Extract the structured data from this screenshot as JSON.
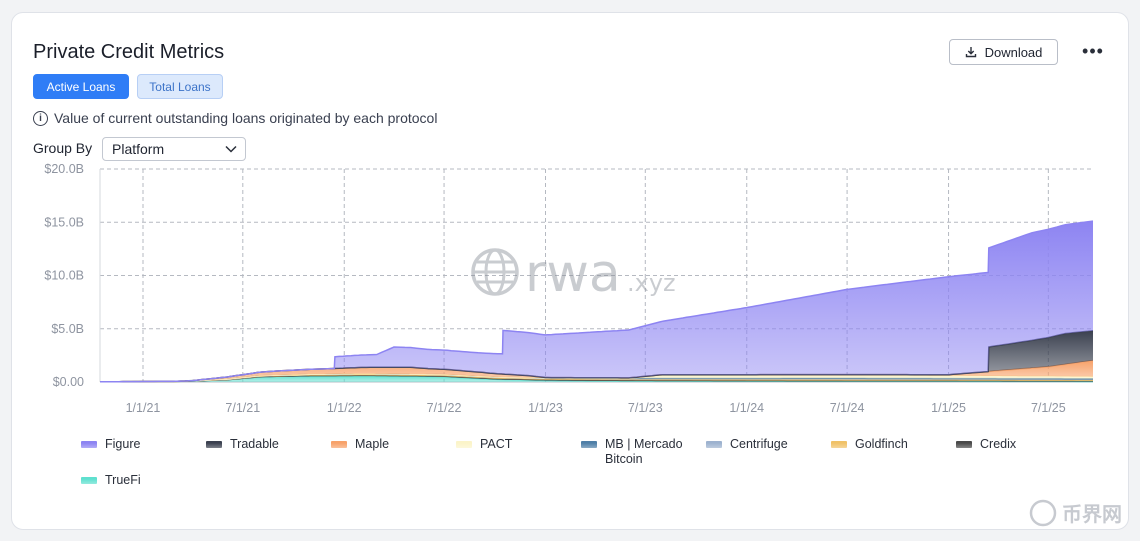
{
  "header": {
    "title": "Private Credit Metrics",
    "download_label": "Download",
    "more_glyph": "•••"
  },
  "tabs": [
    {
      "label": "Active Loans",
      "active": true
    },
    {
      "label": "Total Loans",
      "active": false
    }
  ],
  "info_text": "Value of current outstanding loans originated by each protocol",
  "group_by": {
    "label": "Group By",
    "value": "Platform"
  },
  "watermark": {
    "main": "rwa",
    "suffix": ".xyz"
  },
  "corner_watermark": "币界网",
  "colors": {
    "figure": "#8d84f2",
    "tradable": "#3b4150",
    "maple": "#f7a26a",
    "pact": "#fbf4c9",
    "mb_mercado": "#4f7fa7",
    "centrifuge": "#9db2cf",
    "goldfinch": "#f0c268",
    "credix": "#4a4a4a",
    "truefi": "#5fe0cf"
  },
  "chart_data": {
    "type": "area",
    "stacked": true,
    "y_tick_labels": [
      "$0.00",
      "$5.0B",
      "$10.0B",
      "$15.0B",
      "$20.0B"
    ],
    "y_ticks": [
      0,
      5,
      10,
      15,
      20
    ],
    "ylim": [
      0,
      20
    ],
    "y_unit": "USD billions",
    "x_tick_labels": [
      "1/1/21",
      "7/1/21",
      "1/1/22",
      "7/1/22",
      "1/1/23",
      "7/1/23",
      "1/1/24",
      "7/1/24",
      "1/1/25",
      "7/1/25"
    ],
    "x_ticks": [
      "2021-01-01",
      "2021-07-01",
      "2022-01-01",
      "2022-07-01",
      "2023-01-01",
      "2023-07-01",
      "2024-01-01",
      "2024-07-01",
      "2025-01-01",
      "2025-07-01"
    ],
    "xlim": [
      "2020-10-15",
      "2025-09-20"
    ],
    "grid": true,
    "legend_position": "bottom",
    "series": [
      {
        "name": "TrueFi",
        "color_key": "truefi",
        "points": [
          [
            "2020-10-15",
            0.02
          ],
          [
            "2021-03-01",
            0.05
          ],
          [
            "2021-06-01",
            0.2
          ],
          [
            "2021-08-01",
            0.5
          ],
          [
            "2021-11-01",
            0.6
          ],
          [
            "2022-02-01",
            0.6
          ],
          [
            "2022-05-01",
            0.55
          ],
          [
            "2022-07-01",
            0.5
          ],
          [
            "2022-10-01",
            0.25
          ],
          [
            "2023-01-01",
            0.15
          ],
          [
            "2023-06-01",
            0.1
          ],
          [
            "2024-01-01",
            0.08
          ],
          [
            "2025-09-20",
            0.05
          ]
        ]
      },
      {
        "name": "Credix",
        "color_key": "credix",
        "points": [
          [
            "2020-10-15",
            0
          ],
          [
            "2021-12-01",
            0
          ],
          [
            "2022-03-01",
            0.03
          ],
          [
            "2022-09-01",
            0.05
          ],
          [
            "2023-06-01",
            0.05
          ],
          [
            "2025-09-20",
            0.05
          ]
        ]
      },
      {
        "name": "Goldfinch",
        "color_key": "goldfinch",
        "points": [
          [
            "2020-10-15",
            0
          ],
          [
            "2021-03-01",
            0
          ],
          [
            "2021-07-01",
            0.05
          ],
          [
            "2022-01-01",
            0.1
          ],
          [
            "2022-07-01",
            0.1
          ],
          [
            "2023-06-01",
            0.1
          ],
          [
            "2024-06-01",
            0.1
          ],
          [
            "2025-09-20",
            0.08
          ]
        ]
      },
      {
        "name": "Centrifuge",
        "color_key": "centrifuge",
        "points": [
          [
            "2020-10-15",
            0
          ],
          [
            "2021-06-01",
            0.02
          ],
          [
            "2022-01-01",
            0.05
          ],
          [
            "2023-01-01",
            0.05
          ],
          [
            "2024-06-01",
            0.1
          ],
          [
            "2025-09-20",
            0.1
          ]
        ]
      },
      {
        "name": "MB | Mercado Bitcoin",
        "color_key": "mb_mercado",
        "points": [
          [
            "2020-10-15",
            0
          ],
          [
            "2022-06-01",
            0
          ],
          [
            "2023-01-01",
            0.02
          ],
          [
            "2025-09-20",
            0.03
          ]
        ]
      },
      {
        "name": "PACT",
        "color_key": "pact",
        "points": [
          [
            "2020-10-15",
            0
          ],
          [
            "2023-06-01",
            0
          ],
          [
            "2023-08-01",
            0.3
          ],
          [
            "2024-06-01",
            0.3
          ],
          [
            "2025-09-20",
            0.2
          ]
        ]
      },
      {
        "name": "Maple",
        "color_key": "maple",
        "points": [
          [
            "2020-10-15",
            0
          ],
          [
            "2021-04-01",
            0
          ],
          [
            "2021-06-01",
            0.2
          ],
          [
            "2021-09-01",
            0.4
          ],
          [
            "2021-12-01",
            0.5
          ],
          [
            "2022-02-01",
            0.6
          ],
          [
            "2022-05-01",
            0.65
          ],
          [
            "2022-06-01",
            0.55
          ],
          [
            "2022-09-01",
            0.4
          ],
          [
            "2022-12-01",
            0.2
          ],
          [
            "2023-01-01",
            0.05
          ],
          [
            "2023-06-01",
            0.05
          ],
          [
            "2024-01-01",
            0.05
          ],
          [
            "2024-06-01",
            0.05
          ],
          [
            "2025-01-01",
            0.1
          ],
          [
            "2025-04-01",
            0.5
          ],
          [
            "2025-07-01",
            0.9
          ],
          [
            "2025-09-20",
            1.5
          ]
        ]
      },
      {
        "name": "Tradable",
        "color_key": "tradable",
        "points": [
          [
            "2020-10-15",
            0
          ],
          [
            "2025-03-14",
            0
          ],
          [
            "2025-03-15",
            2.3
          ],
          [
            "2025-06-01",
            2.6
          ],
          [
            "2025-08-01",
            2.9
          ],
          [
            "2025-09-20",
            2.8
          ]
        ]
      },
      {
        "name": "Figure",
        "color_key": "figure",
        "points": [
          [
            "2020-10-15",
            0
          ],
          [
            "2021-12-14",
            0
          ],
          [
            "2021-12-15",
            1.1
          ],
          [
            "2022-03-01",
            1.2
          ],
          [
            "2022-04-01",
            1.9
          ],
          [
            "2022-06-01",
            1.8
          ],
          [
            "2022-09-01",
            1.8
          ],
          [
            "2022-10-15",
            1.9
          ],
          [
            "2022-10-16",
            4.1
          ],
          [
            "2023-01-01",
            4.0
          ],
          [
            "2023-06-01",
            4.5
          ],
          [
            "2024-01-01",
            6.3
          ],
          [
            "2024-07-01",
            8.0
          ],
          [
            "2025-01-01",
            9.2
          ],
          [
            "2025-03-14",
            9.3
          ],
          [
            "2025-03-15",
            9.3
          ],
          [
            "2025-06-01",
            10.1
          ],
          [
            "2025-09-20",
            10.3
          ]
        ]
      }
    ]
  },
  "legend": [
    {
      "label": "Figure",
      "color_key": "figure"
    },
    {
      "label": "Tradable",
      "color_key": "tradable"
    },
    {
      "label": "Maple",
      "color_key": "maple"
    },
    {
      "label": "PACT",
      "color_key": "pact"
    },
    {
      "label": "MB | Mercado Bitcoin",
      "color_key": "mb_mercado"
    },
    {
      "label": "Centrifuge",
      "color_key": "centrifuge"
    },
    {
      "label": "Goldfinch",
      "color_key": "goldfinch"
    },
    {
      "label": "Credix",
      "color_key": "credix"
    },
    {
      "label": "TrueFi",
      "color_key": "truefi"
    }
  ]
}
